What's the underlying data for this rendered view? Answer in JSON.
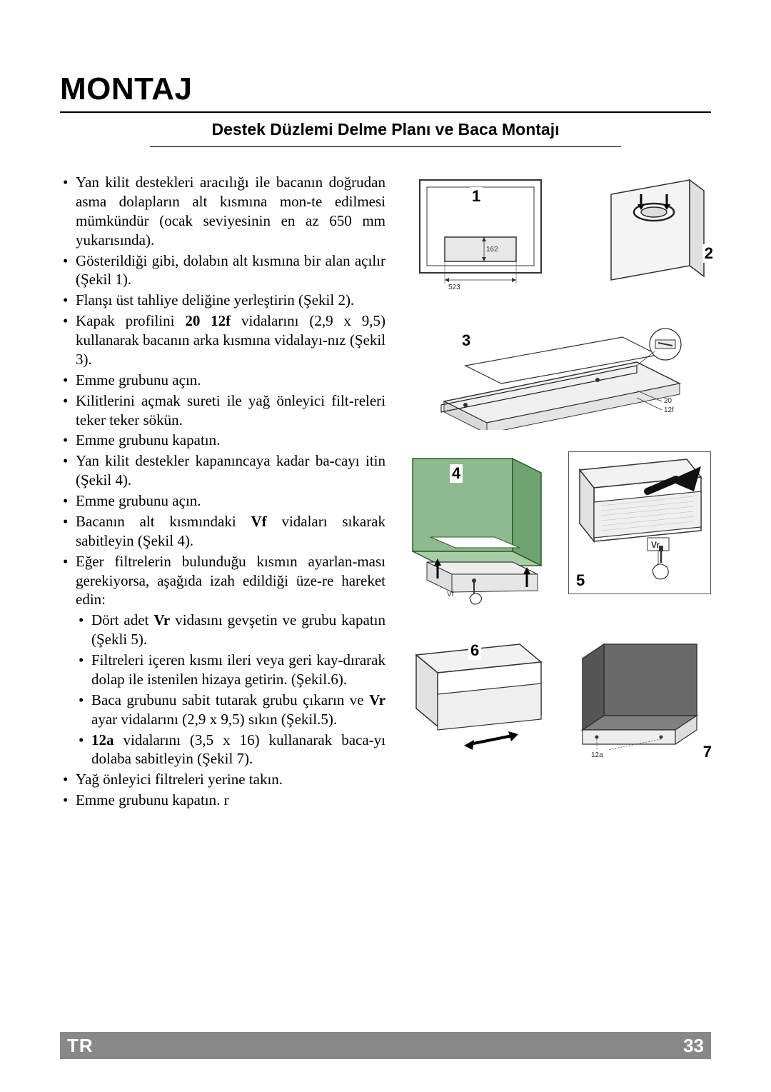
{
  "title": "MONTAJ",
  "subtitle": "Destek Düzlemi Delme Planı ve Baca Montajı",
  "footer": {
    "lang": "TR",
    "page": "33"
  },
  "footer_bg": "#888888",
  "footer_fg": "#ffffff",
  "bullets_l1": [
    "Yan kilit destekleri aracılığı ile bacanın doğrudan asma dolapların alt kısmına mon-te edilmesi mümkündür (ocak seviyesinin en az 650 mm yukarısında).",
    "Gösterildiği gibi, dolabın alt kısmına bir alan açılır (Şekil 1).",
    "Flanşı üst tahliye deliğine yerleştirin (Şekil 2).",
    "Kapak profilini <b>20 12f</b> vidalarını (2,9 x 9,5) kullanarak bacanın arka kısmına vidalayı-nız (Şekil 3).",
    "Emme grubunu açın.",
    "Kilitlerini açmak sureti ile yağ önleyici filt-releri teker teker sökün.",
    "Emme grubunu kapatın.",
    "Yan kilit destekler kapanıncaya kadar ba-cayı itin (Şekil 4).",
    "Emme grubunu açın.",
    "Bacanın alt kısmındaki <b>Vf</b> vidaları sıkarak sabitleyin (Şekil 4).",
    "Eğer filtrelerin bulunduğu kısmın ayarlan-ması gerekiyorsa, aşağıda izah edildiği üze-re hareket edin:"
  ],
  "bullets_l2": [
    "Dört adet <b>Vr</b> vidasını gevşetin ve grubu kapatın (Şekli 5).",
    "Filtreleri içeren kısmı ileri veya geri kay-dırarak dolap ile istenilen hizaya getirin. (Şekil.6).",
    "Baca grubunu sabit tutarak grubu çıkarın ve <b>Vr</b>  ayar vidalarını (2,9 x 9,5) sıkın (Şekil.5).",
    "<b>12a</b> vidalarını (3,5 x 16) kullanarak baca-yı dolaba sabitleyin (Şekil 7)."
  ],
  "bullets_l1_tail": [
    "Yağ önleyici filtreleri yerine takın.",
    "Emme grubunu kapatın. r"
  ],
  "figs": {
    "f1": {
      "num": "1",
      "dim_w": "523",
      "dim_h": "162"
    },
    "f2": {
      "num": "2"
    },
    "f3": {
      "num": "3",
      "dim_a": "20",
      "dim_b": "12f"
    },
    "f4": {
      "num": "4"
    },
    "f5": {
      "num": "5",
      "label": "Vr"
    },
    "f6": {
      "num": "6"
    },
    "f7": {
      "num": "7",
      "label": "12a"
    }
  }
}
